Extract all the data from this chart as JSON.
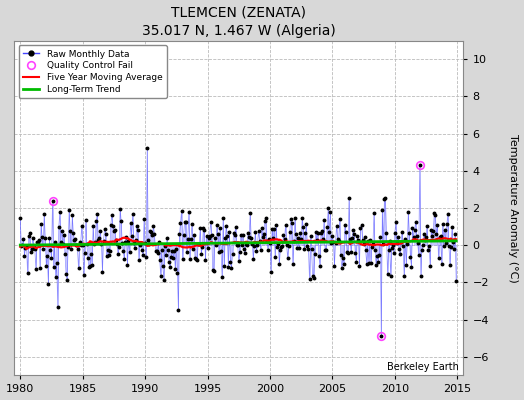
{
  "title": "TLEMCEN (ZENATA)",
  "subtitle": "35.017 N, 1.467 W (Algeria)",
  "ylabel": "Temperature Anomaly (°C)",
  "credit": "Berkeley Earth",
  "xlim": [
    1979.5,
    2015.5
  ],
  "ylim": [
    -7,
    11
  ],
  "yticks": [
    -6,
    -4,
    -2,
    0,
    2,
    4,
    6,
    8,
    10
  ],
  "xticks": [
    1980,
    1985,
    1990,
    1995,
    2000,
    2005,
    2010,
    2015
  ],
  "bg_color": "#d8d8d8",
  "plot_bg_color": "#ffffff",
  "grid_color": "#bbbbbb",
  "line_color": "#4444ff",
  "stem_color": "#8888ff",
  "dot_color": "#000000",
  "ma_color": "#ff0000",
  "trend_color": "#00bb00",
  "qc_color": "#ff44ff",
  "title_fontsize": 10,
  "subtitle_fontsize": 9,
  "tick_fontsize": 8,
  "ylabel_fontsize": 8
}
